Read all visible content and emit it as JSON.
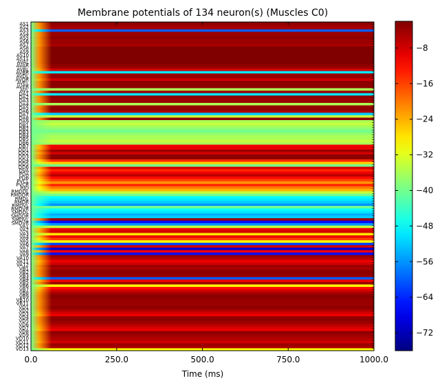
{
  "chart_data": {
    "type": "heatmap",
    "title": "Membrane potentials of 134 neuron(s) (Muscles C0)",
    "xlabel": "Time (ms)",
    "ylabel": "",
    "xlim": [
      0,
      1000
    ],
    "x_ticks": [
      "0.0",
      "250.0",
      "500.0",
      "750.0",
      "1000.0"
    ],
    "colorbar": {
      "colormap": "jet",
      "range": [
        -76,
        -2
      ],
      "ticks": [
        -8,
        -16,
        -24,
        -32,
        -40,
        -48,
        -56,
        -64,
        -72
      ]
    },
    "row_labels_visible": [
      "AS1",
      "AS2",
      "AS3",
      "AS4",
      "AS5",
      "AS6",
      "AS7",
      "AS8",
      "AS9",
      "AS10",
      "AS11",
      "AVAL",
      "AVAR",
      "AVBL",
      "AVBR",
      "AVDL",
      "AVDR",
      "AVEL",
      "AVER",
      "AVL",
      "DA1",
      "DA2",
      "DA3",
      "DA4",
      "DA5",
      "DA6",
      "DA7",
      "DA8",
      "DA9",
      "DB1",
      "DB2",
      "DB3",
      "DB4",
      "DB5",
      "DB6",
      "DB7",
      "DD1",
      "DD2",
      "DD3",
      "DD4",
      "DD5",
      "DD6",
      "DVA",
      "PDA",
      "PDB",
      "PVCL",
      "PVCR",
      "RID",
      "RMDDL",
      "RMDDR",
      "RMDL",
      "RMDR",
      "RMDVL",
      "RMDVR",
      "SMDDL",
      "SMDDR",
      "SMDVL",
      "SMDVR",
      "VA1",
      "VA2",
      "VA3",
      "VA4",
      "VA5",
      "VA6",
      "VA7",
      "VA8",
      "VA9",
      "VA10",
      "VA11",
      "VA12",
      "VB1",
      "VB2",
      "VB3",
      "VB4",
      "VB5",
      "VB6",
      "VB7",
      "VB8",
      "VB9",
      "VB10",
      "VB11",
      "VD1",
      "VD2",
      "VD3",
      "VD4",
      "VD5",
      "VD6",
      "VD7",
      "VD8",
      "VD9",
      "VD10",
      "VD11",
      "VD12",
      "VD13"
    ],
    "rows_total": 134,
    "row_band_values_mV": [
      -3,
      -4,
      -5,
      -60,
      -4,
      -4,
      -3,
      -4,
      -4,
      -5,
      -2,
      -2,
      -2,
      -2,
      -2,
      -2,
      -2,
      -3,
      -4,
      -8,
      -50,
      -4,
      -4,
      -8,
      -3,
      -3,
      -3,
      -36,
      -4,
      -50,
      -3,
      -4,
      -4,
      -36,
      -4,
      -3,
      -5,
      -52,
      -34,
      -3,
      -36,
      -34,
      -36,
      -38,
      -40,
      -38,
      -36,
      -36,
      -34,
      -36,
      -10,
      -10,
      -4,
      -8,
      -3,
      -3,
      -14,
      -26,
      -40,
      -8,
      -14,
      -10,
      -6,
      -12,
      -16,
      -22,
      -14,
      -20,
      -24,
      -34,
      -40,
      -48,
      -50,
      -52,
      -56,
      -40,
      -48,
      -50,
      -54,
      -52,
      -4,
      -66,
      -56,
      -34,
      -10,
      -8,
      -28,
      -10,
      -16,
      -30,
      -62,
      -8,
      -70,
      -10,
      -66,
      -4,
      -6,
      -10,
      -8,
      -4,
      -5,
      -3,
      -3,
      -4,
      -60,
      -10,
      -4,
      -30,
      -12,
      -8,
      -5,
      -3,
      -3,
      -4,
      -4,
      -4,
      -3,
      -5,
      -8,
      -10,
      -3,
      -3,
      -4,
      -6,
      -8,
      -10,
      -3,
      -4,
      -5,
      -6,
      -8,
      -4,
      -5,
      -30
    ],
    "initial_transient": {
      "duration_ms": 60,
      "start_value_mV": -40
    }
  }
}
